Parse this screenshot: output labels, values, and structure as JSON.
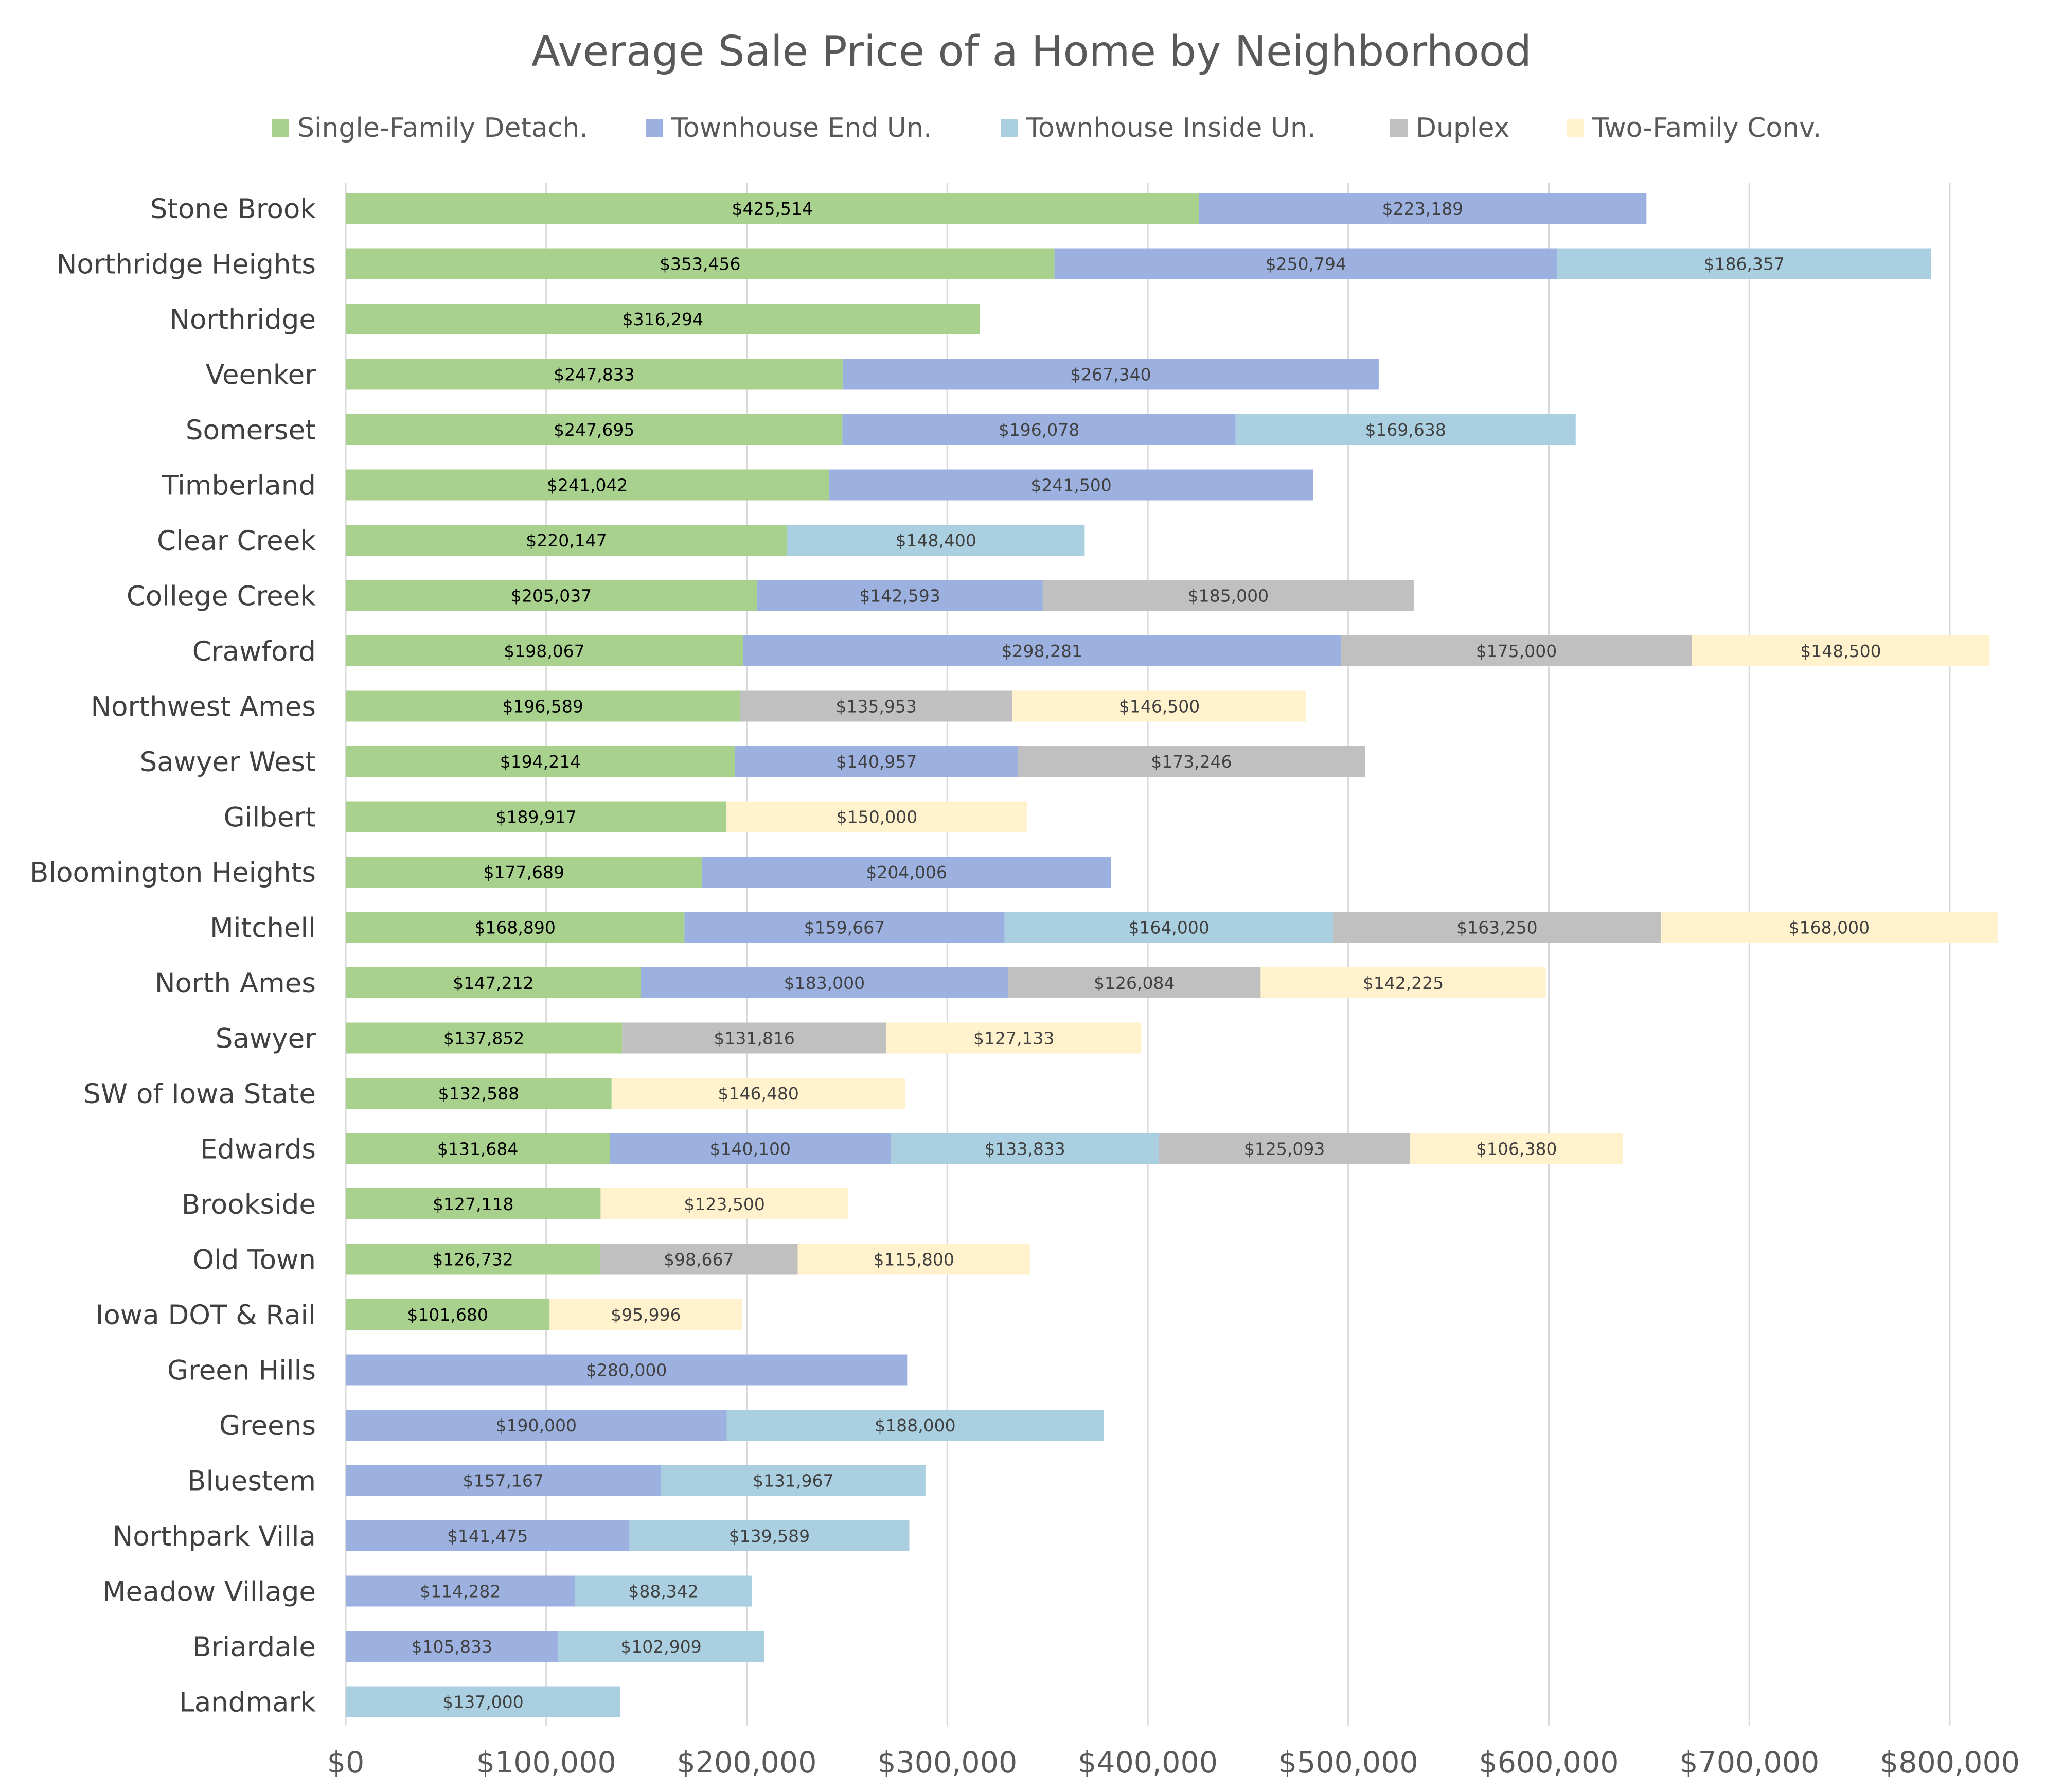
{
  "chart_data": {
    "type": "bar",
    "orientation": "horizontal",
    "stacked": true,
    "title": "Average Sale Price of a Home by Neighborhood",
    "xlim": [
      0,
      800000
    ],
    "x_ticks": [
      "$0",
      "$100,000",
      "$200,000",
      "$300,000",
      "$400,000",
      "$500,000",
      "$600,000",
      "$700,000",
      "$800,000"
    ],
    "grid": "vertical",
    "legend_position": "top",
    "categories": [
      "Stone Brook",
      "Northridge Heights",
      "Northridge",
      "Veenker",
      "Somerset",
      "Timberland",
      "Clear Creek",
      "College Creek",
      "Crawford",
      "Northwest Ames",
      "Sawyer West",
      "Gilbert",
      "Bloomington Heights",
      "Mitchell",
      "North Ames",
      "Sawyer",
      "SW of Iowa State",
      "Edwards",
      "Brookside",
      "Old Town",
      "Iowa DOT & Rail",
      "Green Hills",
      "Greens",
      "Bluestem",
      "Northpark Villa",
      "Meadow Village",
      "Briardale",
      "Landmark"
    ],
    "series": [
      {
        "name": "Single-Family Detach.",
        "color": "#a9d18e",
        "label_color": "#000000",
        "values": [
          425514,
          353456,
          316294,
          247833,
          247695,
          241042,
          220147,
          205037,
          198067,
          196589,
          194214,
          189917,
          177689,
          168890,
          147212,
          137852,
          132588,
          131684,
          127118,
          126732,
          101680,
          null,
          null,
          null,
          null,
          null,
          null,
          null
        ],
        "labels": [
          "$425,514",
          "$353,456",
          "$316,294",
          "$247,833",
          "$247,695",
          "$241,042",
          "$220,147",
          "$205,037",
          "$198,067",
          "$196,589",
          "$194,214",
          "$189,917",
          "$177,689",
          "$168,890",
          "$147,212",
          "$137,852",
          "$132,588",
          "$131,684",
          "$127,118",
          "$126,732",
          "$101,680",
          "",
          "",
          "",
          "",
          "",
          "",
          ""
        ]
      },
      {
        "name": "Townhouse End Un.",
        "color": "#9cb1e0",
        "label_color": "#404040",
        "values": [
          223189,
          250794,
          null,
          267340,
          196078,
          241500,
          null,
          142593,
          298281,
          null,
          140957,
          null,
          204006,
          159667,
          183000,
          null,
          null,
          140100,
          null,
          null,
          null,
          280000,
          190000,
          157167,
          141475,
          114282,
          105833,
          null
        ],
        "labels": [
          "$223,189",
          "$250,794",
          "",
          "$267,340",
          "$196,078",
          "$241,500",
          "",
          "$142,593",
          "$298,281",
          "",
          "$140,957",
          "",
          "$204,006",
          "$159,667",
          "$183,000",
          "",
          "",
          "$140,100",
          "",
          "",
          "",
          "$280,000",
          "$190,000",
          "$157,167",
          "$141,475",
          "$114,282",
          "$105,833",
          ""
        ]
      },
      {
        "name": "Townhouse Inside Un.",
        "color": "#a9cfe0",
        "label_color": "#404040",
        "values": [
          null,
          186357,
          null,
          null,
          169638,
          null,
          148400,
          null,
          null,
          null,
          null,
          null,
          null,
          164000,
          null,
          null,
          null,
          133833,
          null,
          null,
          null,
          null,
          188000,
          131967,
          139589,
          88342,
          102909,
          137000
        ],
        "labels": [
          "",
          "$186,357",
          "",
          "",
          "$169,638",
          "",
          "$148,400",
          "",
          "",
          "",
          "",
          "",
          "",
          "$164,000",
          "",
          "",
          "",
          "$133,833",
          "",
          "",
          "",
          "",
          "$188,000",
          "$131,967",
          "$139,589",
          "$88,342",
          "$102,909",
          "$137,000"
        ]
      },
      {
        "name": "Duplex",
        "color": "#c0c0c0",
        "label_color": "#404040",
        "values": [
          null,
          null,
          null,
          null,
          null,
          null,
          null,
          185000,
          175000,
          135953,
          173246,
          null,
          null,
          163250,
          126084,
          131816,
          null,
          125093,
          null,
          98667,
          null,
          null,
          null,
          null,
          null,
          null,
          null,
          null
        ],
        "labels": [
          "",
          "",
          "",
          "",
          "",
          "",
          "",
          "$185,000",
          "$175,000",
          "$135,953",
          "$173,246",
          "",
          "",
          "$163,250",
          "$126,084",
          "$131,816",
          "",
          "$125,093",
          "",
          "$98,667",
          "",
          "",
          "",
          "",
          "",
          "",
          "",
          ""
        ]
      },
      {
        "name": "Two-Family Conv.",
        "color": "#fff2cc",
        "label_color": "#404040",
        "values": [
          null,
          null,
          null,
          null,
          null,
          null,
          null,
          null,
          148500,
          146500,
          null,
          150000,
          null,
          168000,
          142225,
          127133,
          146480,
          106380,
          123500,
          115800,
          95996,
          null,
          null,
          null,
          null,
          null,
          null,
          null
        ],
        "labels": [
          "",
          "",
          "",
          "",
          "",
          "",
          "",
          "",
          "$148,500",
          "$146,500",
          "",
          "$150,000",
          "",
          "$168,000",
          "$142,225",
          "$127,133",
          "$146,480",
          "$106,380",
          "$123,500",
          "$115,800",
          "$95,996",
          "",
          "",
          "",
          "",
          "",
          "",
          ""
        ]
      }
    ]
  }
}
